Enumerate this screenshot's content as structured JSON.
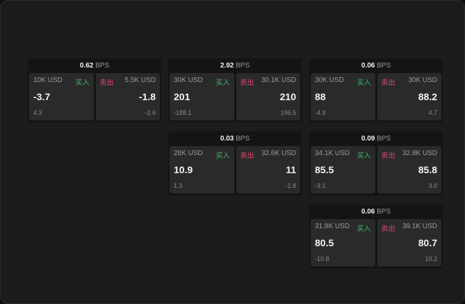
{
  "unit": "BPS",
  "buy_label": "买入",
  "sell_label": "卖出",
  "colors": {
    "buy": "#3fb56a",
    "sell": "#e0456f"
  },
  "panels": [
    {
      "spread": "0.62",
      "buy": {
        "size": "10K USD",
        "price": "-3.7",
        "change": "4.3"
      },
      "sell": {
        "size": "5.5K USD",
        "price": "-1.8",
        "change": "-2.6"
      }
    },
    {
      "spread": "2.92",
      "buy": {
        "size": "30K USD",
        "price": "201",
        "change": "-188.1"
      },
      "sell": {
        "size": "30.1K USD",
        "price": "210",
        "change": "196.5"
      }
    },
    {
      "spread": "0.06",
      "buy": {
        "size": "30K USD",
        "price": "88",
        "change": "-4.9"
      },
      "sell": {
        "size": "30K USD",
        "price": "88.2",
        "change": "4.7"
      }
    },
    {
      "spread": "0.03",
      "buy": {
        "size": "28K USD",
        "price": "10.9",
        "change": "1.3"
      },
      "sell": {
        "size": "32.6K USD",
        "price": "11",
        "change": "-1.8"
      }
    },
    {
      "spread": "0.09",
      "buy": {
        "size": "34.1K USD",
        "price": "85.5",
        "change": "-3.1"
      },
      "sell": {
        "size": "32.8K USD",
        "price": "85.8",
        "change": "3.0"
      }
    },
    {
      "spread": "0.06",
      "buy": {
        "size": "31.8K USD",
        "price": "80.5",
        "change": "-10.8"
      },
      "sell": {
        "size": "39.1K USD",
        "price": "80.7",
        "change": "10.2"
      }
    }
  ]
}
